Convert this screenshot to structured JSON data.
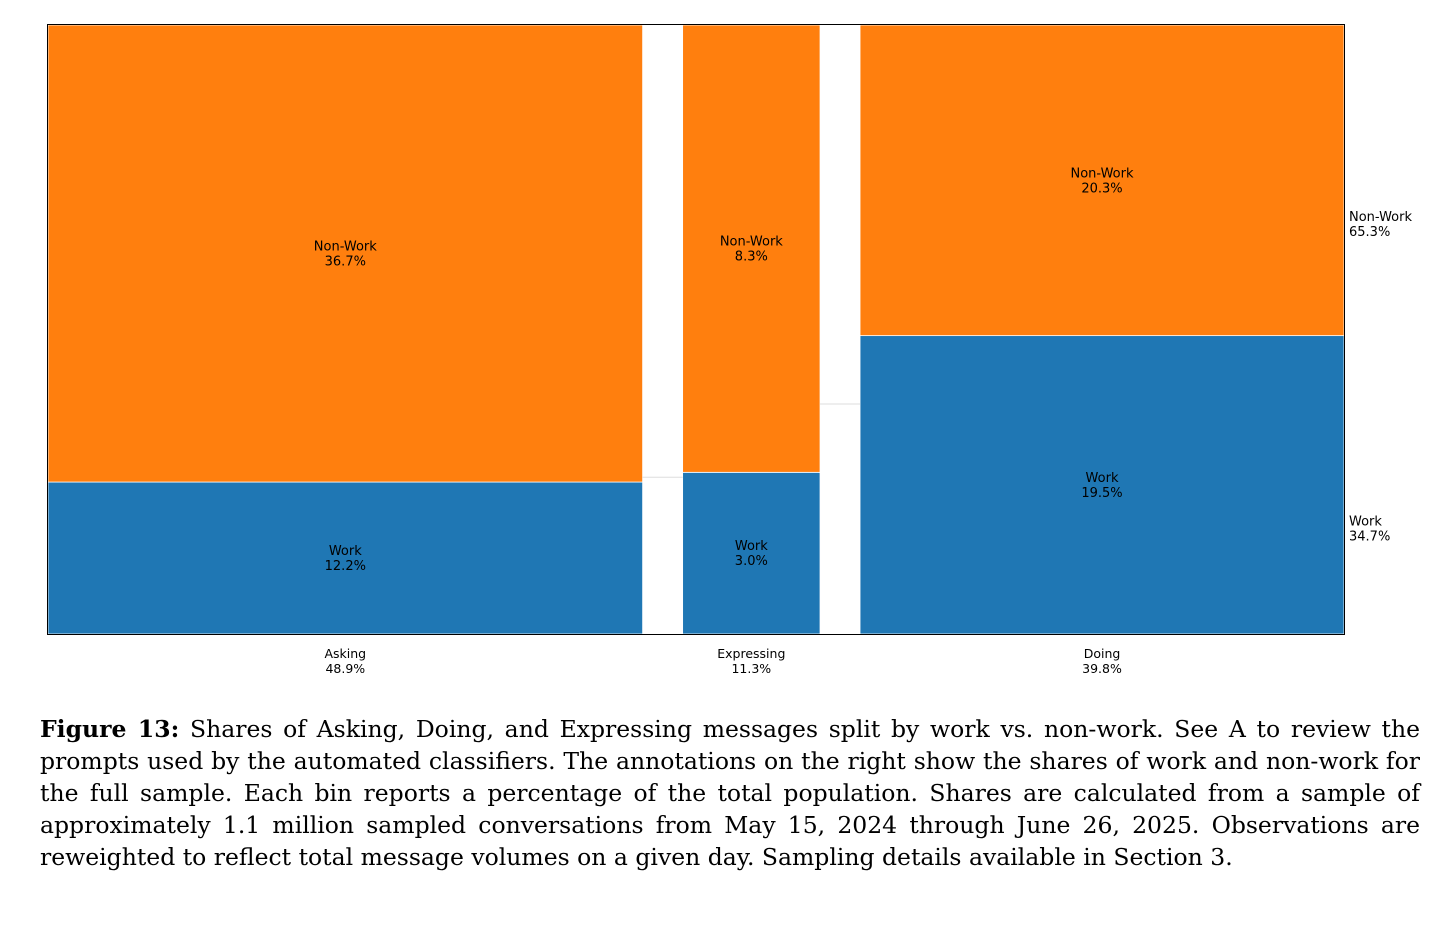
{
  "chart_data": {
    "type": "mosaic",
    "categories": [
      {
        "name": "Asking",
        "share": "48.9%",
        "share_value": 48.9,
        "segments": [
          {
            "name": "Work",
            "label": "12.2%",
            "value": 12.2
          },
          {
            "name": "Non-Work",
            "label": "36.7%",
            "value": 36.7
          }
        ]
      },
      {
        "name": "Expressing",
        "share": "11.3%",
        "share_value": 11.3,
        "segments": [
          {
            "name": "Work",
            "label": "3.0%",
            "value": 3.0
          },
          {
            "name": "Non-Work",
            "label": "8.3%",
            "value": 8.3
          }
        ]
      },
      {
        "name": "Doing",
        "share": "39.8%",
        "share_value": 39.8,
        "segments": [
          {
            "name": "Work",
            "label": "19.5%",
            "value": 19.5
          },
          {
            "name": "Non-Work",
            "label": "20.3%",
            "value": 20.3
          }
        ]
      }
    ],
    "totals": [
      {
        "name": "Non-Work",
        "label": "65.3%",
        "value": 65.3
      },
      {
        "name": "Work",
        "label": "34.7%",
        "value": 34.7
      }
    ],
    "colors": {
      "Work": "#1f77b4",
      "Non-Work": "#ff7f0e",
      "axes": "#000000",
      "gap_line": "#dddddd"
    },
    "legend": "right"
  },
  "caption": {
    "label": "Figure 13:",
    "text": "Shares of Asking, Doing, and Expressing messages split by work vs. non-work. See A to review the prompts used by the automated classifiers. The annotations on the right show the shares of work and non-work for the full sample. Each bin reports a percentage of the total population. Shares are calculated from a sample of approximately 1.1 million sampled conversations from May 15, 2024 through June 26, 2025. Observations are reweighted to reflect total message volumes on a given day. Sampling details available in Section 3."
  }
}
